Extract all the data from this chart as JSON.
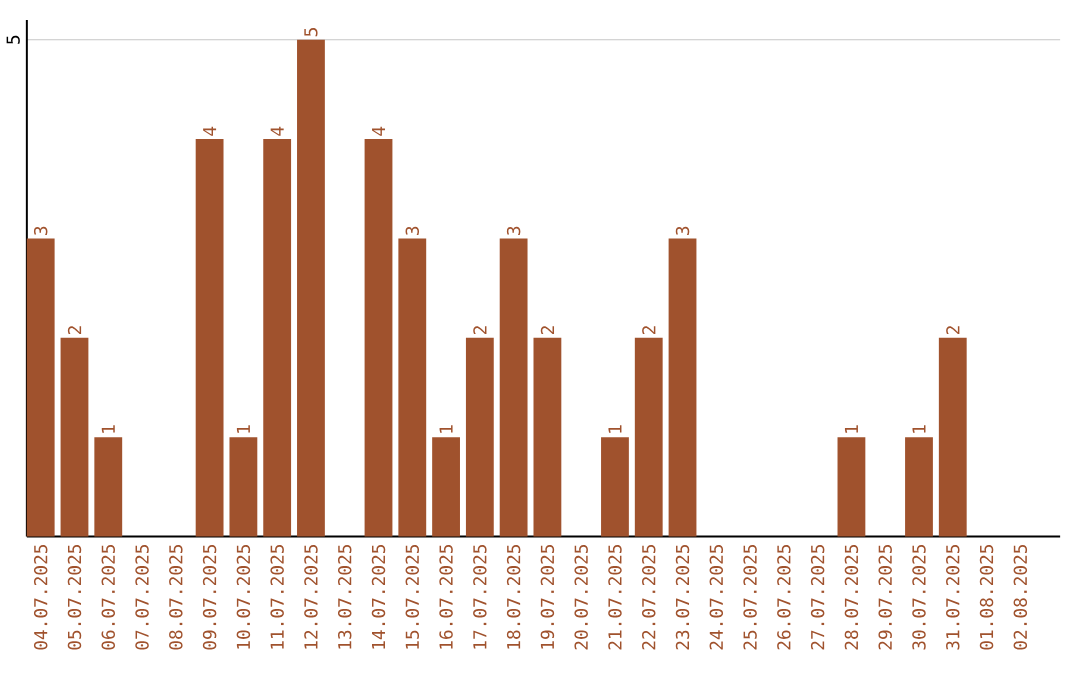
{
  "chart_data": {
    "type": "bar",
    "categories": [
      "04.07.2025",
      "05.07.2025",
      "06.07.2025",
      "07.07.2025",
      "08.07.2025",
      "09.07.2025",
      "10.07.2025",
      "11.07.2025",
      "12.07.2025",
      "13.07.2025",
      "14.07.2025",
      "15.07.2025",
      "16.07.2025",
      "17.07.2025",
      "18.07.2025",
      "19.07.2025",
      "20.07.2025",
      "21.07.2025",
      "22.07.2025",
      "23.07.2025",
      "24.07.2025",
      "25.07.2025",
      "26.07.2025",
      "27.07.2025",
      "28.07.2025",
      "29.07.2025",
      "30.07.2025",
      "31.07.2025",
      "01.08.2025",
      "02.08.2025"
    ],
    "values": [
      3,
      2,
      1,
      0,
      0,
      4,
      1,
      4,
      5,
      0,
      4,
      3,
      1,
      2,
      3,
      2,
      0,
      1,
      2,
      3,
      0,
      0,
      0,
      0,
      1,
      0,
      1,
      2,
      0,
      0
    ],
    "value_labels": [
      "3",
      "2",
      "1",
      null,
      null,
      "4",
      "1",
      "4",
      "5",
      null,
      "4",
      "3",
      "1",
      "2",
      "3",
      "2",
      null,
      "1",
      "2",
      "3",
      null,
      null,
      null,
      null,
      "1",
      null,
      "1",
      "2",
      null,
      null
    ],
    "color": "#a0522d",
    "ylim": [
      0,
      5.2
    ],
    "yticks": [
      5
    ],
    "grid": "y"
  }
}
